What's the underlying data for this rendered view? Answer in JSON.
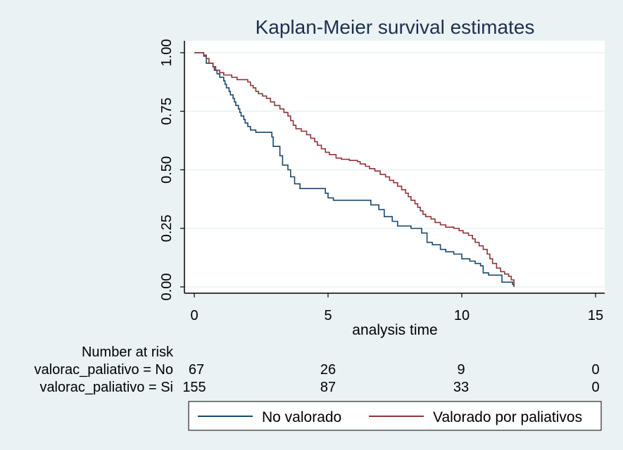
{
  "chart_data": {
    "type": "line",
    "title": "Kaplan-Meier survival estimates",
    "xlabel": "analysis time",
    "ylabel": "",
    "xlim": [
      0,
      15
    ],
    "ylim": [
      0,
      1
    ],
    "x_ticks": [
      "0",
      "5",
      "10",
      "15"
    ],
    "y_ticks": [
      "0.00",
      "0.25",
      "0.50",
      "0.75",
      "1.00"
    ],
    "grid": "horizontal",
    "step": true,
    "series": [
      {
        "name": "No valorado",
        "color": "#1A476F",
        "points": [
          [
            0,
            1.0
          ],
          [
            0.35,
            0.985
          ],
          [
            0.45,
            0.955
          ],
          [
            0.7,
            0.94
          ],
          [
            0.75,
            0.925
          ],
          [
            0.85,
            0.91
          ],
          [
            0.95,
            0.895
          ],
          [
            1.1,
            0.88
          ],
          [
            1.15,
            0.865
          ],
          [
            1.2,
            0.85
          ],
          [
            1.3,
            0.835
          ],
          [
            1.35,
            0.82
          ],
          [
            1.45,
            0.805
          ],
          [
            1.5,
            0.79
          ],
          [
            1.55,
            0.775
          ],
          [
            1.65,
            0.76
          ],
          [
            1.7,
            0.745
          ],
          [
            1.75,
            0.73
          ],
          [
            1.85,
            0.715
          ],
          [
            1.9,
            0.7
          ],
          [
            2.0,
            0.685
          ],
          [
            2.1,
            0.67
          ],
          [
            2.3,
            0.66
          ],
          [
            2.9,
            0.64
          ],
          [
            2.95,
            0.6
          ],
          [
            3.2,
            0.56
          ],
          [
            3.3,
            0.52
          ],
          [
            3.5,
            0.5
          ],
          [
            3.6,
            0.47
          ],
          [
            3.75,
            0.44
          ],
          [
            3.95,
            0.42
          ],
          [
            4.9,
            0.4
          ],
          [
            5.0,
            0.38
          ],
          [
            5.2,
            0.37
          ],
          [
            6.6,
            0.35
          ],
          [
            6.9,
            0.33
          ],
          [
            7.1,
            0.3
          ],
          [
            7.4,
            0.28
          ],
          [
            7.6,
            0.26
          ],
          [
            8.1,
            0.25
          ],
          [
            8.5,
            0.23
          ],
          [
            8.7,
            0.19
          ],
          [
            8.9,
            0.18
          ],
          [
            9.2,
            0.16
          ],
          [
            9.4,
            0.15
          ],
          [
            9.7,
            0.14
          ],
          [
            10.0,
            0.12
          ],
          [
            10.3,
            0.11
          ],
          [
            10.5,
            0.1
          ],
          [
            10.7,
            0.09
          ],
          [
            10.8,
            0.06
          ],
          [
            11.0,
            0.05
          ],
          [
            11.5,
            0.02
          ],
          [
            11.9,
            0.01
          ],
          [
            11.95,
            0.0
          ]
        ]
      },
      {
        "name": "Valorado por paliativos",
        "color": "#90353B",
        "points": [
          [
            0,
            1.0
          ],
          [
            0.35,
            0.99
          ],
          [
            0.45,
            0.975
          ],
          [
            0.55,
            0.955
          ],
          [
            0.7,
            0.94
          ],
          [
            0.8,
            0.925
          ],
          [
            0.95,
            0.915
          ],
          [
            1.1,
            0.905
          ],
          [
            1.4,
            0.895
          ],
          [
            1.6,
            0.885
          ],
          [
            1.8,
            0.885
          ],
          [
            2.0,
            0.875
          ],
          [
            2.1,
            0.86
          ],
          [
            2.2,
            0.85
          ],
          [
            2.3,
            0.835
          ],
          [
            2.4,
            0.825
          ],
          [
            2.55,
            0.815
          ],
          [
            2.7,
            0.805
          ],
          [
            2.85,
            0.79
          ],
          [
            3.0,
            0.775
          ],
          [
            3.2,
            0.76
          ],
          [
            3.35,
            0.745
          ],
          [
            3.5,
            0.73
          ],
          [
            3.6,
            0.71
          ],
          [
            3.7,
            0.69
          ],
          [
            3.8,
            0.675
          ],
          [
            4.0,
            0.665
          ],
          [
            4.2,
            0.65
          ],
          [
            4.35,
            0.635
          ],
          [
            4.5,
            0.62
          ],
          [
            4.6,
            0.605
          ],
          [
            4.75,
            0.59
          ],
          [
            4.9,
            0.575
          ],
          [
            5.05,
            0.565
          ],
          [
            5.3,
            0.55
          ],
          [
            5.5,
            0.545
          ],
          [
            5.8,
            0.54
          ],
          [
            6.1,
            0.535
          ],
          [
            6.2,
            0.525
          ],
          [
            6.4,
            0.515
          ],
          [
            6.55,
            0.505
          ],
          [
            6.75,
            0.495
          ],
          [
            6.95,
            0.48
          ],
          [
            7.15,
            0.47
          ],
          [
            7.3,
            0.455
          ],
          [
            7.45,
            0.445
          ],
          [
            7.6,
            0.43
          ],
          [
            7.75,
            0.415
          ],
          [
            7.9,
            0.4
          ],
          [
            8.0,
            0.385
          ],
          [
            8.1,
            0.37
          ],
          [
            8.25,
            0.355
          ],
          [
            8.35,
            0.34
          ],
          [
            8.45,
            0.325
          ],
          [
            8.55,
            0.31
          ],
          [
            8.65,
            0.3
          ],
          [
            8.85,
            0.29
          ],
          [
            9.0,
            0.275
          ],
          [
            9.2,
            0.265
          ],
          [
            9.4,
            0.255
          ],
          [
            9.7,
            0.25
          ],
          [
            9.9,
            0.24
          ],
          [
            10.05,
            0.23
          ],
          [
            10.25,
            0.22
          ],
          [
            10.4,
            0.205
          ],
          [
            10.5,
            0.19
          ],
          [
            10.65,
            0.175
          ],
          [
            10.8,
            0.16
          ],
          [
            10.95,
            0.14
          ],
          [
            11.05,
            0.12
          ],
          [
            11.15,
            0.1
          ],
          [
            11.3,
            0.08
          ],
          [
            11.45,
            0.065
          ],
          [
            11.6,
            0.055
          ],
          [
            11.75,
            0.045
          ],
          [
            11.85,
            0.03
          ],
          [
            11.95,
            0.0
          ]
        ]
      }
    ]
  },
  "risk_table": {
    "header": "Number at risk",
    "rows": [
      {
        "label": "valorac_paliativo = No",
        "counts": [
          "67",
          "26",
          "9",
          "0"
        ]
      },
      {
        "label": "valorac_paliativo = Si",
        "counts": [
          "155",
          "87",
          "33",
          "0"
        ]
      }
    ]
  },
  "legend": {
    "items": [
      {
        "label": "No valorado",
        "color": "#1A476F"
      },
      {
        "label": "Valorado por paliativos",
        "color": "#90353B"
      }
    ]
  }
}
